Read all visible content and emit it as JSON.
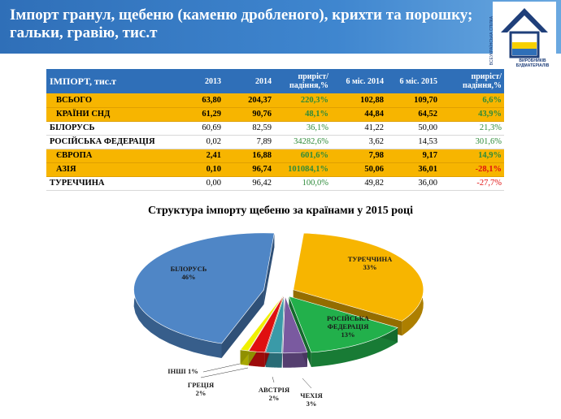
{
  "header": {
    "title": "Імпорт гранул, щебеню (каменю дробленого), крихти та порошку; гальки, гравію, тис.т",
    "logo_text": "ВИРОБНИКІВ БУДМАТЕРІАЛІВ",
    "logo_side_text": "ВСЕУКРАЇНСЬКА СПІЛКА"
  },
  "table": {
    "headers": [
      "ІМПОРТ,  тис.т",
      "2013",
      "2014",
      "приріст/ падіння,%",
      "6 міс. 2014",
      "6 міс. 2015",
      "приріст/ падіння,%"
    ],
    "rows": [
      {
        "name": "ВСЬОГО",
        "v2013": "63,80",
        "v2014": "204,37",
        "d1": "220,3%",
        "h2014": "102,88",
        "h2015": "109,70",
        "d2": "6,6%",
        "highlight": true,
        "d1c": "pos",
        "d2c": "pos"
      },
      {
        "name": "КРАЇНИ СНД",
        "v2013": "61,29",
        "v2014": "90,76",
        "d1": "48,1%",
        "h2014": "44,84",
        "h2015": "64,52",
        "d2": "43,9%",
        "highlight": true,
        "d1c": "pos",
        "d2c": "pos"
      },
      {
        "name": "БІЛОРУСЬ",
        "v2013": "60,69",
        "v2014": "82,59",
        "d1": "36,1%",
        "h2014": "41,22",
        "h2015": "50,00",
        "d2": "21,3%",
        "highlight": false,
        "d1c": "pos",
        "d2c": "pos"
      },
      {
        "name": "РОСІЙСЬКА  ФЕДЕРАЦІЯ",
        "v2013": "0,02",
        "v2014": "7,89",
        "d1": "34282,6%",
        "h2014": "3,62",
        "h2015": "14,53",
        "d2": "301,6%",
        "highlight": false,
        "d1c": "pos",
        "d2c": "pos"
      },
      {
        "name": "ЄВРОПА",
        "v2013": "2,41",
        "v2014": "16,88",
        "d1": "601,6%",
        "h2014": "7,98",
        "h2015": "9,17",
        "d2": "14,9%",
        "highlight": true,
        "d1c": "pos",
        "d2c": "pos"
      },
      {
        "name": "АЗІЯ",
        "v2013": "0,10",
        "v2014": "96,74",
        "d1": "101084,1%",
        "h2014": "50,06",
        "h2015": "36,01",
        "d2": "-28,1%",
        "highlight": true,
        "d1c": "pos",
        "d2c": "neg"
      },
      {
        "name": "ТУРЕЧЧИНА",
        "v2013": "0,00",
        "v2014": "96,42",
        "d1": "100,0%",
        "h2014": "49,82",
        "h2015": "36,00",
        "d2": "-27,7%",
        "highlight": false,
        "d1c": "pos",
        "d2c": "neg"
      }
    ]
  },
  "chart_data": {
    "type": "pie",
    "title": "Структура імпорту щебеню за країнами у 2015 році",
    "slices": [
      {
        "label": "ТУРЕЧЧИНА",
        "pct_label": "33%",
        "value": 33,
        "color": "#f7b500"
      },
      {
        "label": "РОСІЙСЬКА ФЕДЕРАЦІЯ",
        "pct_label": "13%",
        "value": 13,
        "color": "#22b04b"
      },
      {
        "label": "ЧЕХІЯ",
        "pct_label": "3%",
        "value": 3,
        "color": "#7a5aa0"
      },
      {
        "label": "АВСТРІЯ",
        "pct_label": "2%",
        "value": 2,
        "color": "#3a9aa8"
      },
      {
        "label": "ГРЕЦІЯ",
        "pct_label": "2%",
        "value": 2,
        "color": "#e01010"
      },
      {
        "label": "ІНШІ",
        "pct_label": "1%",
        "value": 1,
        "color": "#f0f000"
      },
      {
        "label": "БІЛОРУСЬ",
        "pct_label": "46%",
        "value": 46,
        "color": "#4f86c6"
      }
    ]
  }
}
